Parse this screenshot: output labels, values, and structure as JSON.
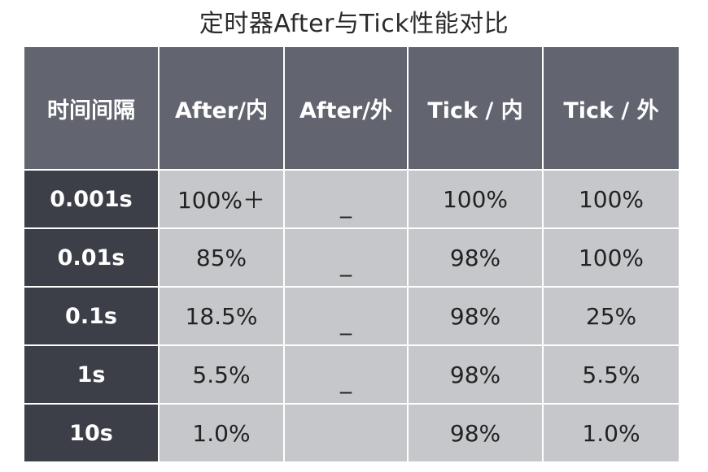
{
  "title": "定时器After与Tick性能对比",
  "table": {
    "headers": [
      "时间间隔",
      "After/内",
      "After/外",
      "Tick / 内",
      "Tick / 外"
    ],
    "rows": [
      [
        "0.001s",
        "100%＋",
        "_",
        "100%",
        "100%"
      ],
      [
        "0.01s",
        "85%",
        "_",
        "98%",
        "100%"
      ],
      [
        "0.1s",
        "18.5%",
        "_",
        "98%",
        "25%"
      ],
      [
        "1s",
        "5.5%",
        "_",
        "98%",
        "5.5%"
      ],
      [
        "10s",
        "1.0%",
        "",
        "98%",
        "1.0%"
      ]
    ]
  },
  "colors": {
    "header_bg": "#62656f",
    "rowhead_bg": "#3d3f48",
    "cell_bg": "#c6c7cb",
    "grid_line": "#ffffff"
  }
}
